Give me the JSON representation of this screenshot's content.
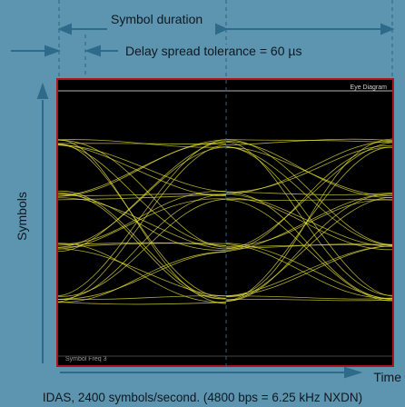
{
  "diagram": {
    "symbol_duration_label": "Symbol duration",
    "delay_spread_label": "Delay spread tolerance = 60 µs",
    "y_axis_label": "Symbols",
    "x_axis_label": "Time",
    "caption": "IDAS, 2400 symbols/second. (4800 bps = 6.25 kHz NXDN)"
  },
  "scope": {
    "title": "Eye Diagram",
    "footer": "Symbol Freq 3"
  },
  "eye": {
    "symbol_levels": 4,
    "trace_color": "#e8e33a",
    "frame_color": "#a8181c"
  }
}
